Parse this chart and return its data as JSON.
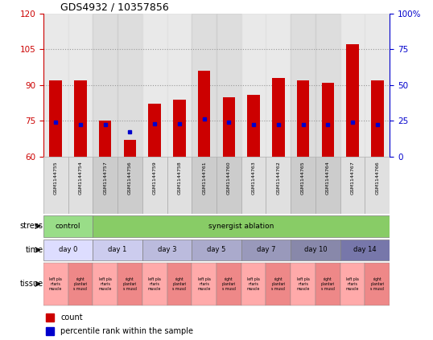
{
  "title": "GDS4932 / 10357856",
  "samples": [
    "GSM1144755",
    "GSM1144754",
    "GSM1144757",
    "GSM1144756",
    "GSM1144759",
    "GSM1144758",
    "GSM1144761",
    "GSM1144760",
    "GSM1144763",
    "GSM1144762",
    "GSM1144765",
    "GSM1144764",
    "GSM1144767",
    "GSM1144766"
  ],
  "counts": [
    92,
    92,
    75,
    67,
    82,
    84,
    96,
    85,
    86,
    93,
    92,
    91,
    107,
    92
  ],
  "percentile_ranks": [
    24,
    22,
    22,
    17,
    23,
    23,
    26,
    24,
    22,
    22,
    22,
    22,
    24,
    22
  ],
  "ylim_left": [
    60,
    120
  ],
  "ylim_right": [
    0,
    100
  ],
  "yticks_left": [
    60,
    75,
    90,
    105,
    120
  ],
  "yticks_right": [
    0,
    25,
    50,
    75,
    100
  ],
  "bar_color": "#cc0000",
  "dot_color": "#0000cc",
  "control_color": "#99dd88",
  "synergist_color": "#88cc66",
  "time_colors": [
    "#ddddff",
    "#ccccee",
    "#bbbbdd",
    "#aaaacc",
    "#9999bb",
    "#8888aa",
    "#7777aa"
  ],
  "tissue_colors": [
    "#ffaaaa",
    "#ee8888"
  ],
  "background_color": "#ffffff",
  "col_bg_even": "#e0e0e0",
  "col_bg_odd": "#cccccc",
  "grid_color": "#999999",
  "axis_color_left": "#cc0000",
  "axis_color_right": "#0000cc",
  "sample_box_color": "#cccccc",
  "time_labels": [
    "day 0",
    "day 1",
    "day 3",
    "day 5",
    "day 7",
    "day 10",
    "day 14"
  ],
  "time_starts": [
    0,
    2,
    4,
    6,
    8,
    10,
    12
  ],
  "tissue_labels": [
    "left pla\nntaris\nmuscle",
    "right\nplantari\ns muscl"
  ]
}
